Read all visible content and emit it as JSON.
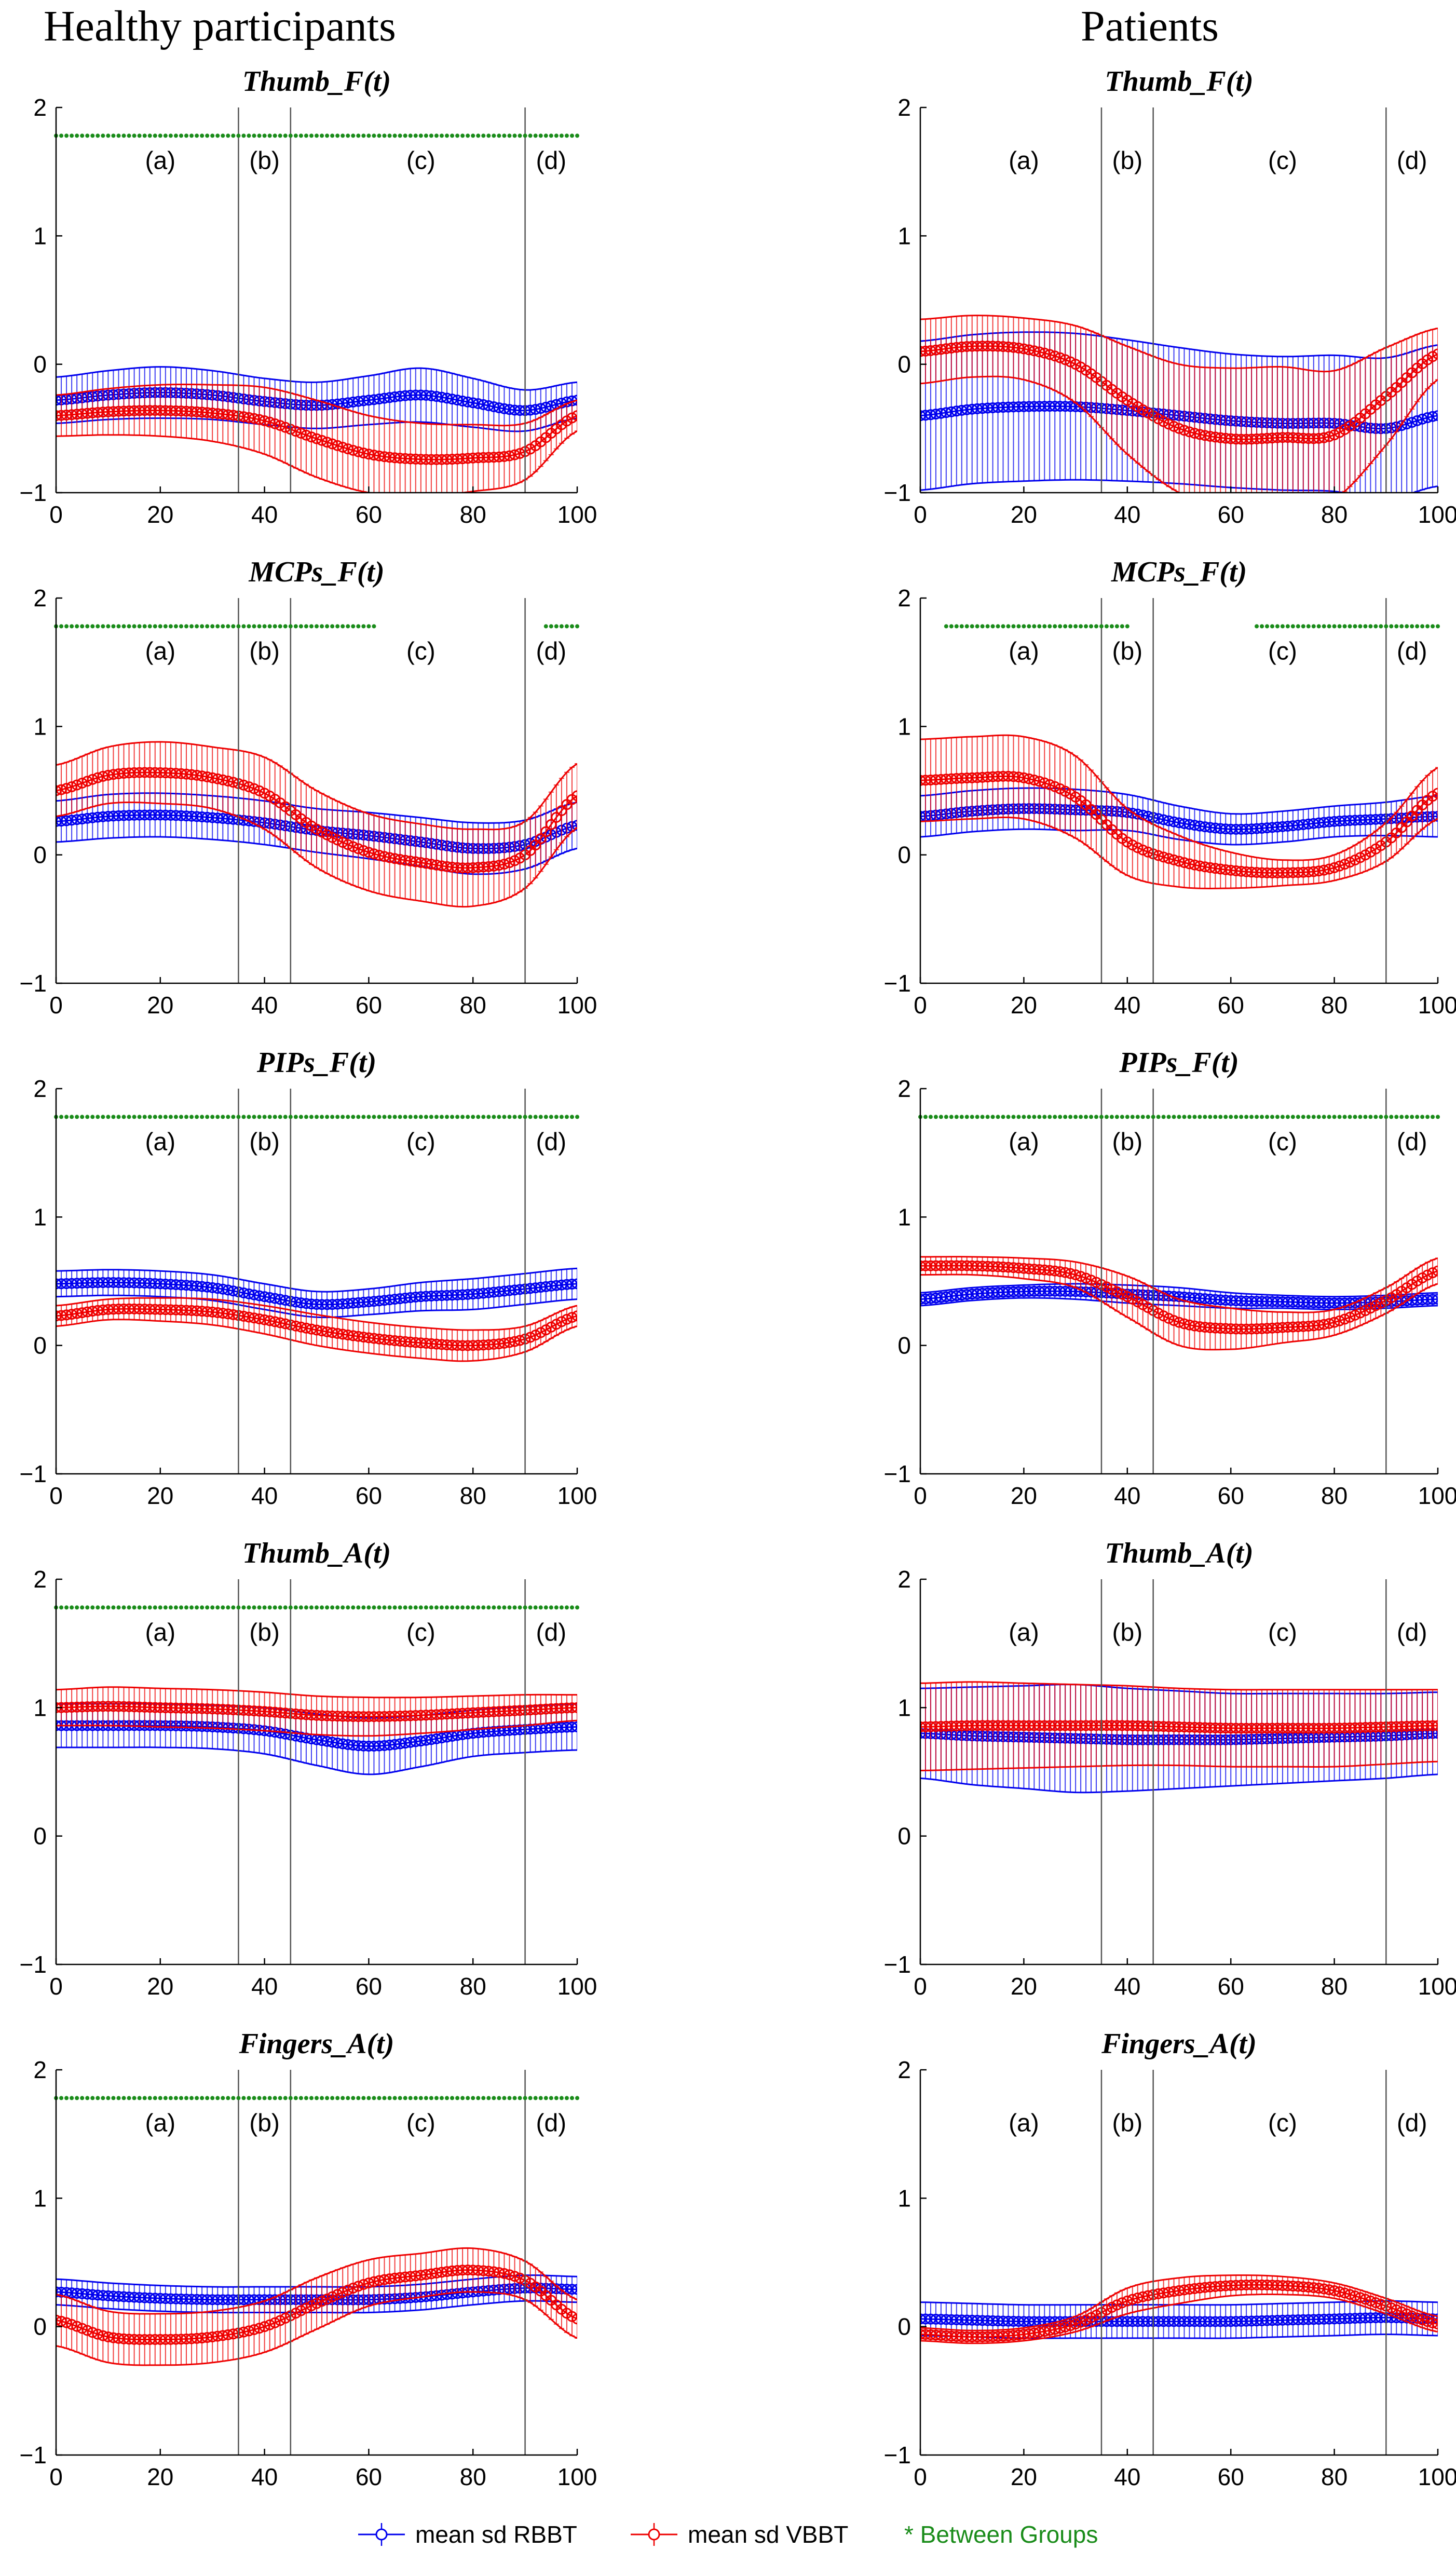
{
  "column_titles": [
    "Healthy participants",
    "Patients"
  ],
  "legend": {
    "items": [
      {
        "label": "mean sd RBBT",
        "color": "#0000ee"
      },
      {
        "label": "mean sd VBBT",
        "color": "#ee0000"
      }
    ],
    "significance": {
      "label": "* Between Groups",
      "color": "#1a8c1a"
    }
  },
  "colors": {
    "rbbt": "#0000ee",
    "vbbt": "#ee0000",
    "significance": "#1a8c1a",
    "phase_line": "#555555"
  },
  "axes": {
    "x_ticks": [
      0,
      20,
      40,
      60,
      80,
      100
    ],
    "y_ticks": [
      -1,
      0,
      1,
      2
    ],
    "xlim": [
      0,
      100
    ],
    "ylim": [
      -1,
      2
    ],
    "phase_boundaries": [
      35,
      45,
      90
    ],
    "phase_labels": [
      {
        "label": "(a)",
        "x": 20
      },
      {
        "label": "(b)",
        "x": 40
      },
      {
        "label": "(c)",
        "x": 70
      },
      {
        "label": "(d)",
        "x": 95
      }
    ],
    "significance_y": 1.78
  },
  "chart_data": [
    {
      "type": "line",
      "group": "Healthy participants",
      "title": "Thumb_F(t)",
      "xlim": [
        0,
        100
      ],
      "ylim": [
        -1,
        2
      ],
      "series": [
        {
          "name": "mean sd RBBT",
          "x": [
            0,
            10,
            20,
            30,
            40,
            50,
            60,
            70,
            80,
            90,
            100
          ],
          "mean": [
            -0.28,
            -0.24,
            -0.22,
            -0.24,
            -0.29,
            -0.32,
            -0.28,
            -0.24,
            -0.3,
            -0.36,
            -0.28
          ],
          "sd": [
            0.18,
            0.19,
            0.2,
            0.19,
            0.18,
            0.18,
            0.19,
            0.21,
            0.19,
            0.16,
            0.14
          ]
        },
        {
          "name": "mean sd VBBT",
          "x": [
            0,
            10,
            20,
            30,
            40,
            50,
            60,
            70,
            80,
            90,
            100
          ],
          "mean": [
            -0.4,
            -0.37,
            -0.36,
            -0.38,
            -0.44,
            -0.58,
            -0.7,
            -0.74,
            -0.73,
            -0.68,
            -0.4
          ],
          "sd": [
            0.16,
            0.18,
            0.2,
            0.22,
            0.26,
            0.3,
            0.3,
            0.28,
            0.26,
            0.22,
            0.12
          ]
        }
      ],
      "significance": [
        [
          0,
          100
        ]
      ]
    },
    {
      "type": "line",
      "group": "Patients",
      "title": "Thumb_F(t)",
      "xlim": [
        0,
        100
      ],
      "ylim": [
        -1,
        2
      ],
      "series": [
        {
          "name": "mean sd RBBT",
          "x": [
            0,
            10,
            20,
            30,
            40,
            50,
            60,
            70,
            80,
            90,
            100
          ],
          "mean": [
            -0.4,
            -0.35,
            -0.33,
            -0.33,
            -0.36,
            -0.4,
            -0.44,
            -0.46,
            -0.46,
            -0.5,
            -0.4
          ],
          "sd": [
            0.58,
            0.58,
            0.58,
            0.57,
            0.55,
            0.53,
            0.52,
            0.52,
            0.53,
            0.55,
            0.55
          ]
        },
        {
          "name": "mean sd VBBT",
          "x": [
            0,
            10,
            20,
            30,
            40,
            50,
            60,
            70,
            80,
            90,
            100
          ],
          "mean": [
            0.1,
            0.14,
            0.12,
            0.0,
            -0.28,
            -0.5,
            -0.58,
            -0.57,
            -0.55,
            -0.25,
            0.08
          ],
          "sd": [
            0.25,
            0.24,
            0.24,
            0.3,
            0.42,
            0.5,
            0.55,
            0.55,
            0.5,
            0.38,
            0.2
          ]
        }
      ],
      "significance": []
    },
    {
      "type": "line",
      "group": "Healthy participants",
      "title": "MCPs_F(t)",
      "xlim": [
        0,
        100
      ],
      "ylim": [
        -1,
        2
      ],
      "series": [
        {
          "name": "mean sd RBBT",
          "x": [
            0,
            10,
            20,
            30,
            40,
            50,
            60,
            70,
            80,
            90,
            100
          ],
          "mean": [
            0.26,
            0.3,
            0.31,
            0.29,
            0.25,
            0.19,
            0.15,
            0.1,
            0.05,
            0.08,
            0.23
          ],
          "sd": [
            0.16,
            0.17,
            0.17,
            0.17,
            0.17,
            0.17,
            0.18,
            0.19,
            0.2,
            0.19,
            0.18
          ]
        },
        {
          "name": "mean sd VBBT",
          "x": [
            0,
            10,
            20,
            30,
            40,
            50,
            60,
            70,
            80,
            90,
            100
          ],
          "mean": [
            0.5,
            0.62,
            0.64,
            0.6,
            0.48,
            0.2,
            0.02,
            -0.06,
            -0.1,
            0.0,
            0.46
          ],
          "sd": [
            0.2,
            0.22,
            0.24,
            0.24,
            0.28,
            0.3,
            0.3,
            0.3,
            0.3,
            0.26,
            0.25
          ]
        }
      ],
      "significance": [
        [
          0,
          61
        ],
        [
          94,
          100
        ]
      ]
    },
    {
      "type": "line",
      "group": "Patients",
      "title": "MCPs_F(t)",
      "xlim": [
        0,
        100
      ],
      "ylim": [
        -1,
        2
      ],
      "series": [
        {
          "name": "mean sd RBBT",
          "x": [
            0,
            10,
            20,
            30,
            40,
            50,
            60,
            70,
            80,
            90,
            100
          ],
          "mean": [
            0.3,
            0.34,
            0.36,
            0.35,
            0.33,
            0.25,
            0.2,
            0.22,
            0.26,
            0.28,
            0.3
          ],
          "sd": [
            0.16,
            0.16,
            0.16,
            0.16,
            0.14,
            0.13,
            0.12,
            0.12,
            0.12,
            0.13,
            0.16
          ]
        },
        {
          "name": "mean sd VBBT",
          "x": [
            0,
            10,
            20,
            30,
            40,
            50,
            60,
            70,
            80,
            90,
            100
          ],
          "mean": [
            0.58,
            0.6,
            0.6,
            0.45,
            0.1,
            -0.05,
            -0.12,
            -0.14,
            -0.1,
            0.1,
            0.48
          ],
          "sd": [
            0.32,
            0.32,
            0.32,
            0.32,
            0.26,
            0.2,
            0.14,
            0.1,
            0.1,
            0.15,
            0.2
          ]
        }
      ],
      "significance": [
        [
          5,
          40
        ],
        [
          65,
          100
        ]
      ]
    },
    {
      "type": "line",
      "group": "Healthy participants",
      "title": "PIPs_F(t)",
      "xlim": [
        0,
        100
      ],
      "ylim": [
        -1,
        2
      ],
      "series": [
        {
          "name": "mean sd RBBT",
          "x": [
            0,
            10,
            20,
            30,
            40,
            50,
            60,
            70,
            80,
            90,
            100
          ],
          "mean": [
            0.48,
            0.49,
            0.48,
            0.45,
            0.38,
            0.32,
            0.34,
            0.38,
            0.4,
            0.44,
            0.48
          ],
          "sd": [
            0.1,
            0.1,
            0.1,
            0.1,
            0.1,
            0.1,
            0.1,
            0.11,
            0.12,
            0.12,
            0.12
          ]
        },
        {
          "name": "mean sd VBBT",
          "x": [
            0,
            10,
            20,
            30,
            40,
            50,
            60,
            70,
            80,
            90,
            100
          ],
          "mean": [
            0.23,
            0.28,
            0.28,
            0.26,
            0.2,
            0.12,
            0.06,
            0.02,
            0.0,
            0.05,
            0.23
          ],
          "sd": [
            0.08,
            0.08,
            0.09,
            0.1,
            0.11,
            0.12,
            0.12,
            0.12,
            0.12,
            0.1,
            0.08
          ]
        }
      ],
      "significance": [
        [
          0,
          100
        ]
      ]
    },
    {
      "type": "line",
      "group": "Patients",
      "title": "PIPs_F(t)",
      "xlim": [
        0,
        100
      ],
      "ylim": [
        -1,
        2
      ],
      "series": [
        {
          "name": "mean sd RBBT",
          "x": [
            0,
            10,
            20,
            30,
            40,
            50,
            60,
            70,
            80,
            90,
            100
          ],
          "mean": [
            0.36,
            0.4,
            0.42,
            0.42,
            0.4,
            0.38,
            0.35,
            0.34,
            0.33,
            0.34,
            0.36
          ],
          "sd": [
            0.05,
            0.05,
            0.05,
            0.06,
            0.07,
            0.07,
            0.06,
            0.05,
            0.05,
            0.05,
            0.05
          ]
        },
        {
          "name": "mean sd VBBT",
          "x": [
            0,
            10,
            20,
            30,
            40,
            50,
            60,
            70,
            80,
            90,
            100
          ],
          "mean": [
            0.62,
            0.62,
            0.6,
            0.55,
            0.38,
            0.18,
            0.13,
            0.14,
            0.18,
            0.35,
            0.58
          ],
          "sd": [
            0.07,
            0.07,
            0.08,
            0.1,
            0.16,
            0.18,
            0.16,
            0.12,
            0.1,
            0.1,
            0.1
          ]
        }
      ],
      "significance": [
        [
          0,
          100
        ]
      ]
    },
    {
      "type": "line",
      "group": "Healthy participants",
      "title": "Thumb_A(t)",
      "xlim": [
        0,
        100
      ],
      "ylim": [
        -1,
        2
      ],
      "series": [
        {
          "name": "mean sd RBBT",
          "x": [
            0,
            10,
            20,
            30,
            40,
            50,
            60,
            70,
            80,
            90,
            100
          ],
          "mean": [
            0.86,
            0.86,
            0.86,
            0.85,
            0.82,
            0.75,
            0.7,
            0.74,
            0.8,
            0.83,
            0.85
          ],
          "sd": [
            0.17,
            0.17,
            0.17,
            0.17,
            0.18,
            0.2,
            0.22,
            0.2,
            0.18,
            0.18,
            0.18
          ]
        },
        {
          "name": "mean sd VBBT",
          "x": [
            0,
            10,
            20,
            30,
            40,
            50,
            60,
            70,
            80,
            90,
            100
          ],
          "mean": [
            1.0,
            1.01,
            1.0,
            0.99,
            0.97,
            0.94,
            0.93,
            0.94,
            0.96,
            0.98,
            1.0
          ],
          "sd": [
            0.14,
            0.15,
            0.15,
            0.15,
            0.15,
            0.15,
            0.15,
            0.14,
            0.13,
            0.12,
            0.1
          ]
        }
      ],
      "significance": [
        [
          0,
          100
        ]
      ]
    },
    {
      "type": "line",
      "group": "Patients",
      "title": "Thumb_A(t)",
      "xlim": [
        0,
        100
      ],
      "ylim": [
        -1,
        2
      ],
      "series": [
        {
          "name": "mean sd RBBT",
          "x": [
            0,
            10,
            20,
            30,
            40,
            50,
            60,
            70,
            80,
            90,
            100
          ],
          "mean": [
            0.8,
            0.78,
            0.77,
            0.76,
            0.75,
            0.75,
            0.75,
            0.76,
            0.77,
            0.78,
            0.8
          ],
          "sd": [
            0.35,
            0.38,
            0.4,
            0.42,
            0.4,
            0.38,
            0.36,
            0.35,
            0.34,
            0.33,
            0.32
          ]
        },
        {
          "name": "mean sd VBBT",
          "x": [
            0,
            10,
            20,
            30,
            40,
            50,
            60,
            70,
            80,
            90,
            100
          ],
          "mean": [
            0.85,
            0.86,
            0.86,
            0.86,
            0.86,
            0.85,
            0.84,
            0.84,
            0.84,
            0.85,
            0.86
          ],
          "sd": [
            0.34,
            0.34,
            0.33,
            0.32,
            0.31,
            0.3,
            0.3,
            0.3,
            0.3,
            0.29,
            0.28
          ]
        }
      ],
      "significance": []
    },
    {
      "type": "line",
      "group": "Healthy participants",
      "title": "Fingers_A(t)",
      "xlim": [
        0,
        100
      ],
      "ylim": [
        -1,
        2
      ],
      "series": [
        {
          "name": "mean sd RBBT",
          "x": [
            0,
            10,
            20,
            30,
            40,
            50,
            60,
            70,
            80,
            90,
            100
          ],
          "mean": [
            0.27,
            0.24,
            0.22,
            0.21,
            0.21,
            0.21,
            0.21,
            0.23,
            0.27,
            0.3,
            0.29
          ],
          "sd": [
            0.1,
            0.1,
            0.1,
            0.1,
            0.1,
            0.1,
            0.1,
            0.1,
            0.1,
            0.1,
            0.1
          ]
        },
        {
          "name": "mean sd VBBT",
          "x": [
            0,
            10,
            20,
            30,
            40,
            50,
            60,
            70,
            80,
            90,
            100
          ],
          "mean": [
            0.05,
            -0.08,
            -0.1,
            -0.08,
            0.0,
            0.18,
            0.34,
            0.4,
            0.44,
            0.36,
            0.06
          ],
          "sd": [
            0.2,
            0.2,
            0.2,
            0.2,
            0.2,
            0.2,
            0.18,
            0.17,
            0.17,
            0.15,
            0.15
          ]
        }
      ],
      "significance": [
        [
          0,
          100
        ]
      ]
    },
    {
      "type": "line",
      "group": "Patients",
      "title": "Fingers_A(t)",
      "xlim": [
        0,
        100
      ],
      "ylim": [
        -1,
        2
      ],
      "series": [
        {
          "name": "mean sd RBBT",
          "x": [
            0,
            10,
            20,
            30,
            40,
            50,
            60,
            70,
            80,
            90,
            100
          ],
          "mean": [
            0.06,
            0.05,
            0.04,
            0.04,
            0.04,
            0.04,
            0.04,
            0.05,
            0.06,
            0.07,
            0.06
          ],
          "sd": [
            0.13,
            0.13,
            0.13,
            0.13,
            0.13,
            0.13,
            0.13,
            0.13,
            0.13,
            0.13,
            0.13
          ]
        },
        {
          "name": "mean sd VBBT",
          "x": [
            0,
            10,
            20,
            30,
            40,
            50,
            60,
            70,
            80,
            90,
            100
          ],
          "mean": [
            -0.06,
            -0.08,
            -0.06,
            0.02,
            0.2,
            0.28,
            0.32,
            0.32,
            0.28,
            0.16,
            0.02
          ],
          "sd": [
            0.05,
            0.05,
            0.05,
            0.06,
            0.1,
            0.1,
            0.08,
            0.07,
            0.06,
            0.06,
            0.06
          ]
        }
      ],
      "significance": []
    }
  ]
}
